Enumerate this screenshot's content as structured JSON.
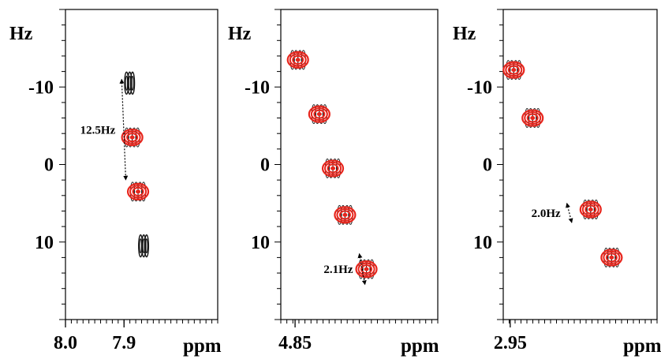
{
  "chart_data": [
    {
      "type": "scatter",
      "ylabel": "Hz",
      "xlabel": "ppm",
      "x_tick_labels": [
        "8.0",
        "7.9"
      ],
      "x_ticks": [
        8.0,
        7.9
      ],
      "y_ticks": [
        -10,
        0,
        10
      ],
      "y_tick_labels": [
        "-10",
        "0",
        "10"
      ],
      "xlim": [
        8.0,
        7.74
      ],
      "ylim": [
        -20,
        20
      ],
      "peaks": [
        {
          "x": 7.893,
          "y": -10.5,
          "color": "black"
        },
        {
          "x": 7.886,
          "y": -3.5,
          "color": "red"
        },
        {
          "x": 7.876,
          "y": 3.5,
          "color": "red"
        },
        {
          "x": 7.869,
          "y": 10.5,
          "color": "black"
        }
      ],
      "annotation": {
        "text": "12.5Hz",
        "from": [
          7.904,
          -11
        ],
        "to": [
          7.897,
          2
        ]
      }
    },
    {
      "type": "scatter",
      "ylabel": "Hz",
      "xlabel": "ppm",
      "x_tick_labels": [
        "4.85"
      ],
      "x_ticks": [
        4.85
      ],
      "y_ticks": [
        -10,
        0,
        10
      ],
      "y_tick_labels": [
        "-10",
        "0",
        "10"
      ],
      "xlim": [
        4.87,
        4.65
      ],
      "ylim": [
        -20,
        20
      ],
      "peaks": [
        {
          "x": 4.846,
          "y": -13.5,
          "color": "red"
        },
        {
          "x": 4.816,
          "y": -6.5,
          "color": "red"
        },
        {
          "x": 4.797,
          "y": 0.5,
          "color": "red"
        },
        {
          "x": 4.78,
          "y": 6.5,
          "color": "red"
        },
        {
          "x": 4.75,
          "y": 13.5,
          "color": "red"
        }
      ],
      "annotation": {
        "text": "2.1Hz",
        "from": [
          4.76,
          11.5
        ],
        "to": [
          4.752,
          15.5
        ]
      }
    },
    {
      "type": "scatter",
      "ylabel": "Hz",
      "xlabel": "ppm",
      "x_tick_labels": [
        "2.95"
      ],
      "x_ticks": [
        2.95
      ],
      "y_ticks": [
        -10,
        0,
        10
      ],
      "y_tick_labels": [
        "-10",
        "0",
        "10"
      ],
      "xlim": [
        2.96,
        2.74
      ],
      "ylim": [
        -20,
        20
      ],
      "peaks": [
        {
          "x": 2.945,
          "y": -12.2,
          "color": "red"
        },
        {
          "x": 2.918,
          "y": -6.0,
          "color": "red"
        },
        {
          "x": 2.835,
          "y": 5.8,
          "color": "red"
        },
        {
          "x": 2.805,
          "y": 12.0,
          "color": "red"
        }
      ],
      "annotation": {
        "text": "2.0Hz",
        "from": [
          2.869,
          5
        ],
        "to": [
          2.862,
          7.5
        ]
      }
    }
  ]
}
